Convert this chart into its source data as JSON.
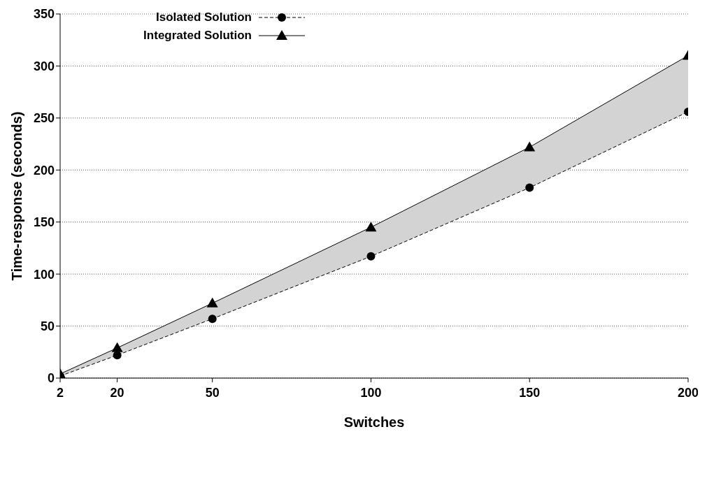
{
  "chart_data": {
    "type": "line",
    "xlabel": "Switches",
    "ylabel": "Time-response (seconds)",
    "x": [
      2,
      20,
      50,
      100,
      150,
      200
    ],
    "series": [
      {
        "name": "Isolated Solution",
        "color": "#000000",
        "marker": "circle",
        "line_style": "dashed",
        "values": [
          2,
          22,
          57,
          117,
          183,
          256
        ]
      },
      {
        "name": "Integrated Solution",
        "color": "#000000",
        "marker": "triangle",
        "line_style": "solid",
        "values": [
          4,
          29,
          72,
          145,
          222,
          310
        ],
        "lower": [
          2,
          22,
          57,
          117,
          183,
          256
        ],
        "upper": [
          4,
          29,
          72,
          145,
          222,
          310
        ]
      }
    ],
    "xlim": [
      2,
      200
    ],
    "xticks": [
      2,
      20,
      50,
      100,
      150,
      200
    ],
    "ylim": [
      0,
      350
    ],
    "yticks": [
      0,
      50,
      100,
      150,
      200,
      250,
      300,
      350
    ],
    "grid": "y",
    "legend": "top left"
  }
}
